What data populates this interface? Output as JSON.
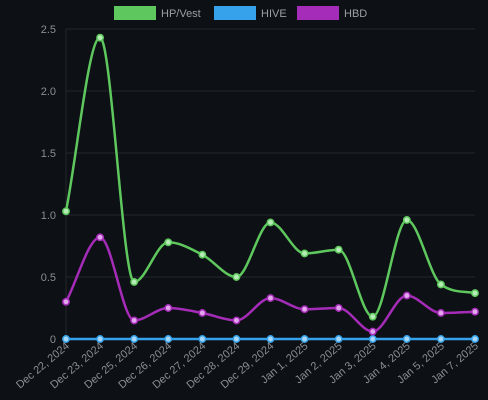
{
  "chart_data": {
    "type": "line",
    "title": "",
    "xlabel": "",
    "ylabel": "",
    "categories": [
      "Dec 22, 2024",
      "Dec 23, 2024",
      "Dec 25, 2024",
      "Dec 26, 2024",
      "Dec 27, 2024",
      "Dec 28, 2024",
      "Dec 29, 2024",
      "Jan 1, 2025",
      "Jan 2, 2025",
      "Jan 3, 2025",
      "Jan 4, 2025",
      "Jan 5, 2025",
      "Jan 7, 2025"
    ],
    "ylim": [
      0,
      2.5
    ],
    "yticks": [
      "0",
      "0.5",
      "1.0",
      "1.5",
      "2.0",
      "2.5"
    ],
    "ytick_values": [
      0,
      0.5,
      1.0,
      1.5,
      2.0,
      2.5
    ],
    "grid": "horizontal",
    "legend_position": "top-center",
    "series": [
      {
        "name": "HP/Vest",
        "color": "#5ec85e",
        "values": [
          1.03,
          2.43,
          0.46,
          0.78,
          0.68,
          0.5,
          0.94,
          0.69,
          0.72,
          0.18,
          0.96,
          0.44,
          0.37
        ]
      },
      {
        "name": "HIVE",
        "color": "#36a2eb",
        "values": [
          0,
          0,
          0,
          0,
          0,
          0,
          0,
          0,
          0,
          0,
          0,
          0,
          0
        ]
      },
      {
        "name": "HBD",
        "color": "#a52cb8",
        "values": [
          0.3,
          0.82,
          0.15,
          0.25,
          0.21,
          0.15,
          0.33,
          0.24,
          0.25,
          0.06,
          0.35,
          0.21,
          0.22
        ]
      }
    ]
  }
}
